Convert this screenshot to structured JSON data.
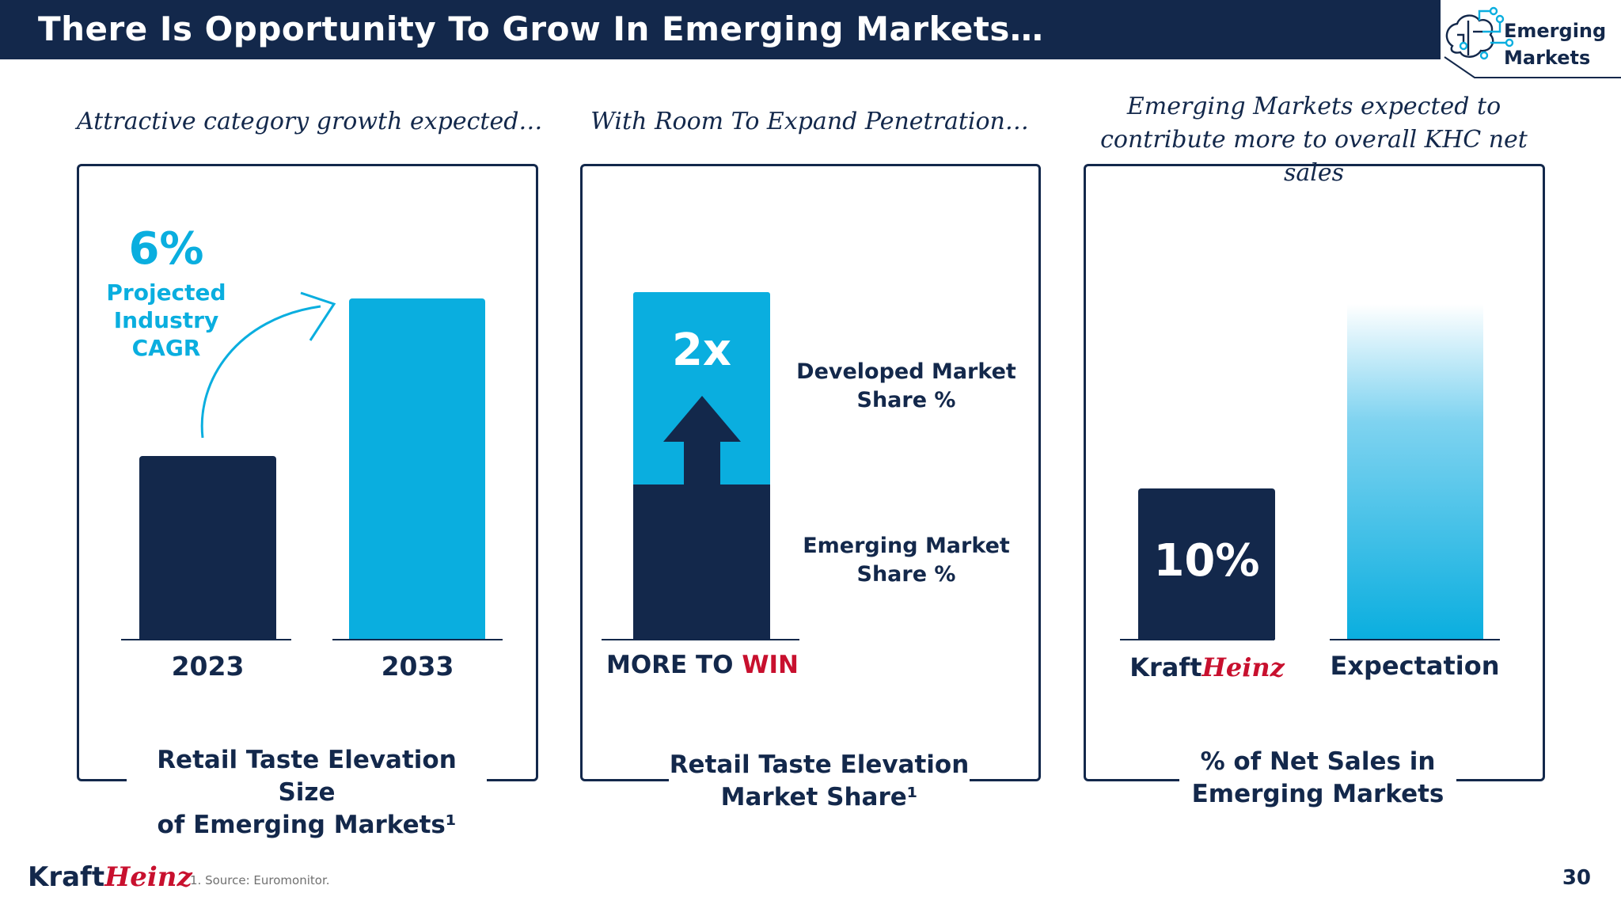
{
  "header": {
    "title": "There Is Opportunity To Grow In Emerging Markets…",
    "badge_line1": "Emerging",
    "badge_line2": "Markets",
    "badge_icon": "brain-circuit-icon"
  },
  "panels": [
    {
      "subtitle": "Attractive category growth expected…",
      "cagr_value": "6%",
      "cagr_label_lines": [
        "Projected",
        "Industry",
        "CAGR"
      ],
      "bars": [
        {
          "label": "2023",
          "color": "#13284b"
        },
        {
          "label": "2033",
          "color": "#0aaedf"
        }
      ],
      "caption_line1": "Retail Taste Elevation Size",
      "caption_line2": "of Emerging Markets¹"
    },
    {
      "subtitle": "With Room To Expand Penetration…",
      "multiplier": "2x",
      "developed_label_lines": [
        "Developed Market",
        "Share %"
      ],
      "emerging_label_lines": [
        "Emerging Market",
        "Share %"
      ],
      "tagline_prefix": "MORE TO",
      "tagline_highlight": "WIN",
      "caption_line1": "Retail Taste Elevation",
      "caption_line2": "Market Share¹"
    },
    {
      "subtitle_line1": "Emerging Markets expected to",
      "subtitle_line2": "contribute more to overall KHC net sales",
      "bar_value": "10%",
      "bar1_logo_prefix": "Kraft",
      "bar1_logo_script": "Heinz",
      "bar2_label": "Expectation",
      "caption_line1": "% of Net Sales in",
      "caption_line2": "Emerging Markets"
    }
  ],
  "chart_data": [
    {
      "type": "bar",
      "title": "Retail Taste Elevation Size of Emerging Markets¹",
      "categories": [
        "2023",
        "2033"
      ],
      "values": [
        0.53,
        1.0
      ],
      "annotation": "6% Projected Industry CAGR"
    },
    {
      "type": "bar",
      "title": "Retail Taste Elevation Market Share¹",
      "categories": [
        "MORE TO WIN"
      ],
      "series": [
        {
          "name": "Emerging Market Share %",
          "values": [
            1
          ]
        },
        {
          "name": "Developed Market Share %",
          "values": [
            2
          ]
        }
      ],
      "annotation": "2x"
    },
    {
      "type": "bar",
      "title": "% of Net Sales in Emerging Markets",
      "categories": [
        "KraftHeinz",
        "Expectation"
      ],
      "values": [
        10,
        null
      ],
      "data_labels": [
        "10%",
        ""
      ]
    }
  ],
  "footer": {
    "logo_prefix": "Kraft",
    "logo_script": "Heinz",
    "footnote": "1. Source: Euromonitor.",
    "page_number": "30"
  }
}
